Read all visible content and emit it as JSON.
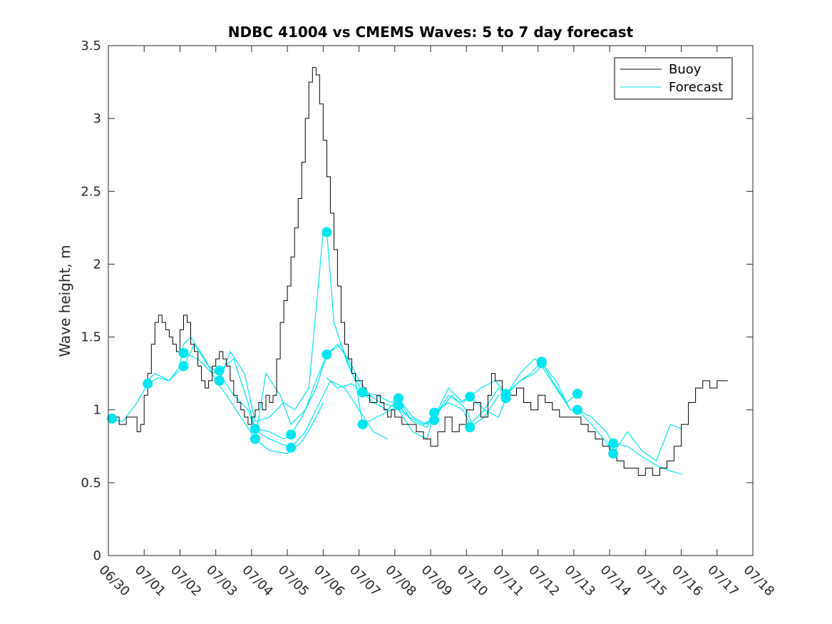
{
  "chart_data": {
    "type": "line",
    "title": "NDBC 41004 vs CMEMS Waves: 5 to 7 day forecast",
    "xlabel": "",
    "ylabel": "Wave height, m",
    "x_ticks": [
      "06/30",
      "07/01",
      "07/02",
      "07/03",
      "07/04",
      "07/05",
      "07/06",
      "07/07",
      "07/08",
      "07/09",
      "07/10",
      "07/11",
      "07/12",
      "07/13",
      "07/14",
      "07/15",
      "07/16",
      "07/17",
      "07/18"
    ],
    "xlim": [
      0,
      18
    ],
    "ylim": [
      0,
      3.5
    ],
    "y_ticks": [
      0,
      0.5,
      1,
      1.5,
      2,
      2.5,
      3,
      3.5
    ],
    "grid": false,
    "legend_position": "top-right",
    "colors": {
      "buoy": "#000000",
      "forecast": "#00e5ee"
    },
    "series": [
      {
        "name": "Buoy",
        "x": [
          0.0,
          0.3,
          0.5,
          0.8,
          0.9,
          1.0,
          1.1,
          1.2,
          1.3,
          1.4,
          1.5,
          1.6,
          1.7,
          1.8,
          1.9,
          2.0,
          2.1,
          2.2,
          2.3,
          2.4,
          2.5,
          2.6,
          2.7,
          2.8,
          2.9,
          3.0,
          3.1,
          3.2,
          3.3,
          3.4,
          3.5,
          3.6,
          3.7,
          3.8,
          3.9,
          4.0,
          4.1,
          4.2,
          4.3,
          4.4,
          4.5,
          4.6,
          4.7,
          4.8,
          4.9,
          5.0,
          5.1,
          5.2,
          5.3,
          5.4,
          5.5,
          5.6,
          5.7,
          5.8,
          5.9,
          6.0,
          6.1,
          6.2,
          6.3,
          6.4,
          6.5,
          6.6,
          6.7,
          6.8,
          6.9,
          7.0,
          7.1,
          7.2,
          7.3,
          7.4,
          7.5,
          7.6,
          7.7,
          7.8,
          7.9,
          8.0,
          8.2,
          8.4,
          8.6,
          8.8,
          9.0,
          9.2,
          9.4,
          9.6,
          9.8,
          10.0,
          10.2,
          10.4,
          10.6,
          10.7,
          10.8,
          11.0,
          11.2,
          11.4,
          11.6,
          11.8,
          12.0,
          12.2,
          12.4,
          12.6,
          12.8,
          13.0,
          13.2,
          13.4,
          13.6,
          13.8,
          14.0,
          14.2,
          14.4,
          14.6,
          14.8,
          15.0,
          15.2,
          15.4,
          15.6,
          15.8,
          16.0,
          16.2,
          16.4,
          16.6,
          16.8,
          17.0,
          17.2,
          17.3
        ],
        "y": [
          0.95,
          0.9,
          0.95,
          0.85,
          0.9,
          1.1,
          1.25,
          1.45,
          1.6,
          1.65,
          1.6,
          1.55,
          1.5,
          1.45,
          1.4,
          1.55,
          1.65,
          1.6,
          1.45,
          1.4,
          1.3,
          1.2,
          1.15,
          1.2,
          1.3,
          1.35,
          1.4,
          1.35,
          1.3,
          1.2,
          1.1,
          1.05,
          1.0,
          0.95,
          0.9,
          0.95,
          1.0,
          1.05,
          1.0,
          1.1,
          1.05,
          1.1,
          1.35,
          1.6,
          1.75,
          1.85,
          2.05,
          2.25,
          2.45,
          2.7,
          3.0,
          3.25,
          3.35,
          3.3,
          3.1,
          2.85,
          2.6,
          2.35,
          2.1,
          1.85,
          1.6,
          1.45,
          1.35,
          1.25,
          1.2,
          1.2,
          1.15,
          1.1,
          1.05,
          1.05,
          1.1,
          1.05,
          1.0,
          0.95,
          1.0,
          0.95,
          0.9,
          0.9,
          0.85,
          0.8,
          0.75,
          0.85,
          0.95,
          0.85,
          0.9,
          1.0,
          1.05,
          0.95,
          1.1,
          1.25,
          1.2,
          1.1,
          1.1,
          1.15,
          1.05,
          1.0,
          1.1,
          1.05,
          1.0,
          0.95,
          0.95,
          0.95,
          0.9,
          0.85,
          0.8,
          0.75,
          0.7,
          0.65,
          0.6,
          0.6,
          0.55,
          0.6,
          0.55,
          0.6,
          0.65,
          0.75,
          0.9,
          1.05,
          1.15,
          1.2,
          1.15,
          1.2,
          1.2,
          1.2
        ]
      },
      {
        "name": "Forecast",
        "runs": [
          {
            "x": [
              0.0,
              0.4,
              0.8,
              1.1,
              1.4,
              1.7,
              2.0,
              2.1,
              2.3,
              2.7,
              3.0,
              3.3,
              3.7,
              4.1,
              4.5,
              5.0,
              5.4,
              5.7,
              6.0
            ],
            "y": [
              0.94,
              0.92,
              1.05,
              1.18,
              1.22,
              1.2,
              1.3,
              1.45,
              1.5,
              1.35,
              1.2,
              1.1,
              0.95,
              0.8,
              0.72,
              0.7,
              0.78,
              0.9,
              1.05
            ]
          },
          {
            "x": [
              1.0,
              1.3,
              1.7,
              2.1,
              2.4,
              2.8,
              3.1,
              3.5,
              3.9,
              4.1,
              4.5,
              5.1,
              5.5,
              5.9,
              6.2,
              6.6,
              7.0,
              7.4,
              7.8
            ],
            "y": [
              1.18,
              1.25,
              1.2,
              1.3,
              1.45,
              1.3,
              1.25,
              1.1,
              1.0,
              0.86,
              0.8,
              0.74,
              0.85,
              1.05,
              1.2,
              1.15,
              1.0,
              0.85,
              0.8
            ]
          },
          {
            "x": [
              2.1,
              2.5,
              2.9,
              3.1,
              3.5,
              3.9,
              4.1,
              4.5,
              4.9,
              5.1,
              5.4,
              5.8,
              6.1,
              6.4,
              6.7,
              7.0,
              7.3,
              7.6,
              8.0,
              8.4,
              8.8,
              9.1
            ],
            "y": [
              1.39,
              1.35,
              1.25,
              1.27,
              1.35,
              1.05,
              0.87,
              0.85,
              0.8,
              0.83,
              0.95,
              1.15,
              1.38,
              1.45,
              1.35,
              1.2,
              1.1,
              1.05,
              1.02,
              0.95,
              0.9,
              0.93
            ]
          },
          {
            "x": [
              3.1,
              3.4,
              3.8,
              4.1,
              4.5,
              4.9,
              5.2,
              5.6,
              6.0,
              6.1,
              6.3,
              6.7,
              7.1,
              7.4,
              7.8,
              8.1,
              8.5,
              8.9,
              9.2,
              9.6,
              10.0,
              10.2
            ],
            "y": [
              1.2,
              1.4,
              1.25,
              0.92,
              0.95,
              1.05,
              1.0,
              1.15,
              2.22,
              2.22,
              1.6,
              1.3,
              1.12,
              1.05,
              1.0,
              1.08,
              0.95,
              0.9,
              0.98,
              1.1,
              1.0,
              0.88
            ]
          },
          {
            "x": [
              4.1,
              4.4,
              4.8,
              5.1,
              5.5,
              5.8,
              6.1,
              6.5,
              6.9,
              7.1,
              7.5,
              7.9,
              8.1,
              8.5,
              8.9,
              9.1,
              9.5,
              9.9,
              10.1,
              10.5,
              10.9,
              11.1
            ],
            "y": [
              0.8,
              1.25,
              1.1,
              0.9,
              1.0,
              1.2,
              1.38,
              1.45,
              1.2,
              0.9,
              0.95,
              1.0,
              1.03,
              0.92,
              0.88,
              0.95,
              1.15,
              1.05,
              1.09,
              1.0,
              0.95,
              1.08
            ]
          },
          {
            "x": [
              6.1,
              6.4,
              6.8,
              7.1,
              7.5,
              7.9,
              8.1,
              8.4,
              8.8,
              9.1,
              9.5,
              9.8,
              10.1,
              10.4,
              10.8,
              11.1,
              11.5,
              11.8,
              12.1,
              12.4,
              12.8,
              13.1
            ],
            "y": [
              1.22,
              1.15,
              1.18,
              1.12,
              1.1,
              1.05,
              1.08,
              0.95,
              0.9,
              0.95,
              1.1,
              1.05,
              1.09,
              1.15,
              1.2,
              1.11,
              1.2,
              1.25,
              1.33,
              1.2,
              1.05,
              1.11
            ]
          },
          {
            "x": [
              8.1,
              8.5,
              8.9,
              9.1,
              9.5,
              9.9,
              10.1,
              10.5,
              10.9,
              11.1,
              11.5,
              11.9,
              12.1,
              12.5,
              12.9,
              13.1,
              13.5,
              13.9,
              14.1,
              14.5,
              14.9,
              15.3,
              15.7,
              16.0
            ],
            "y": [
              1.0,
              0.85,
              0.8,
              0.98,
              1.05,
              1.0,
              0.9,
              1.0,
              1.15,
              1.1,
              1.25,
              1.35,
              1.32,
              1.2,
              1.0,
              1.0,
              0.95,
              0.85,
              0.77,
              0.75,
              0.68,
              0.62,
              0.58,
              0.56
            ]
          },
          {
            "x": [
              10.1,
              10.5,
              10.9,
              11.1,
              11.5,
              11.9,
              12.1,
              12.5,
              12.9,
              13.1,
              13.5,
              13.9,
              14.1,
              14.5,
              14.9,
              15.3,
              15.7,
              16.0
            ],
            "y": [
              0.88,
              0.95,
              1.1,
              1.1,
              1.2,
              1.25,
              1.3,
              1.15,
              1.0,
              1.0,
              0.9,
              0.78,
              0.7,
              0.85,
              0.72,
              0.65,
              0.9,
              0.87
            ]
          }
        ],
        "markers": [
          {
            "x": 0.1,
            "y": 0.94
          },
          {
            "x": 1.1,
            "y": 1.18
          },
          {
            "x": 2.1,
            "y": 1.39
          },
          {
            "x": 2.1,
            "y": 1.3
          },
          {
            "x": 3.1,
            "y": 1.27
          },
          {
            "x": 3.1,
            "y": 1.2
          },
          {
            "x": 4.1,
            "y": 0.87
          },
          {
            "x": 4.1,
            "y": 0.8
          },
          {
            "x": 5.1,
            "y": 0.83
          },
          {
            "x": 5.1,
            "y": 0.74
          },
          {
            "x": 6.1,
            "y": 2.22
          },
          {
            "x": 6.1,
            "y": 1.38
          },
          {
            "x": 7.1,
            "y": 1.12
          },
          {
            "x": 7.1,
            "y": 0.9
          },
          {
            "x": 8.1,
            "y": 1.08
          },
          {
            "x": 8.1,
            "y": 1.03
          },
          {
            "x": 9.1,
            "y": 0.98
          },
          {
            "x": 9.1,
            "y": 0.93
          },
          {
            "x": 10.1,
            "y": 1.09
          },
          {
            "x": 10.1,
            "y": 0.88
          },
          {
            "x": 11.1,
            "y": 1.11
          },
          {
            "x": 11.1,
            "y": 1.08
          },
          {
            "x": 12.1,
            "y": 1.33
          },
          {
            "x": 12.1,
            "y": 1.32
          },
          {
            "x": 13.1,
            "y": 1.11
          },
          {
            "x": 13.1,
            "y": 1.0
          },
          {
            "x": 14.1,
            "y": 0.77
          },
          {
            "x": 14.1,
            "y": 0.7
          }
        ]
      }
    ]
  }
}
